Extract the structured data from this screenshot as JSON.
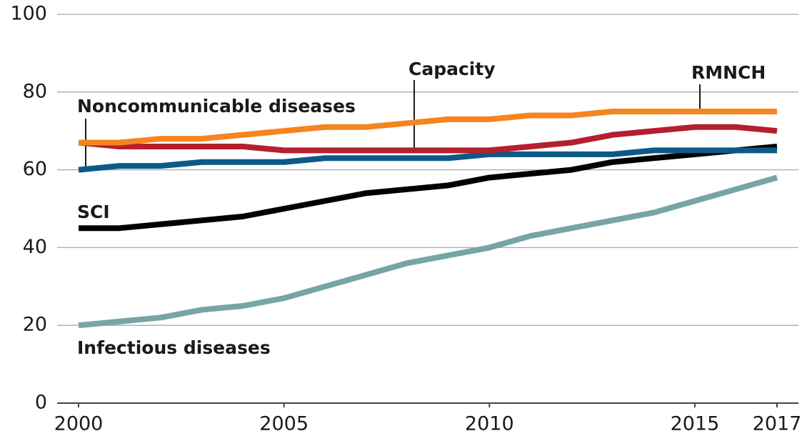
{
  "chart_data": {
    "type": "line",
    "x": [
      2000,
      2001,
      2002,
      2003,
      2004,
      2005,
      2006,
      2007,
      2008,
      2009,
      2010,
      2011,
      2012,
      2013,
      2014,
      2015,
      2016,
      2017
    ],
    "xlim": [
      2000,
      2017
    ],
    "xticks": [
      2000,
      2005,
      2010,
      2015,
      2017
    ],
    "ylim": [
      0,
      100
    ],
    "yticks": [
      0,
      20,
      40,
      60,
      80,
      100
    ],
    "grid": true,
    "series": [
      {
        "name": "Infectious diseases",
        "color": "#76a5a6",
        "values": [
          20,
          21,
          22,
          24,
          25,
          27,
          30,
          33,
          36,
          38,
          40,
          43,
          45,
          47,
          49,
          52,
          55,
          58
        ]
      },
      {
        "name": "SCI",
        "color": "#000000",
        "values": [
          45,
          45,
          46,
          47,
          48,
          50,
          52,
          54,
          55,
          56,
          58,
          59,
          60,
          62,
          63,
          64,
          65,
          66
        ]
      },
      {
        "name": "Noncommunicable diseases",
        "color": "#0d5a86",
        "values": [
          60,
          61,
          61,
          62,
          62,
          62,
          63,
          63,
          63,
          63,
          64,
          64,
          64,
          64,
          65,
          65,
          65,
          65
        ]
      },
      {
        "name": "RMNCH",
        "color": "#b51f2e",
        "values": [
          67,
          66,
          66,
          66,
          66,
          65,
          65,
          65,
          65,
          65,
          65,
          66,
          67,
          69,
          70,
          71,
          71,
          70
        ]
      },
      {
        "name": "Capacity",
        "color": "#f6841f",
        "values": [
          67,
          67,
          68,
          68,
          69,
          70,
          71,
          71,
          72,
          73,
          73,
          74,
          74,
          75,
          75,
          75,
          75,
          75
        ]
      }
    ]
  }
}
